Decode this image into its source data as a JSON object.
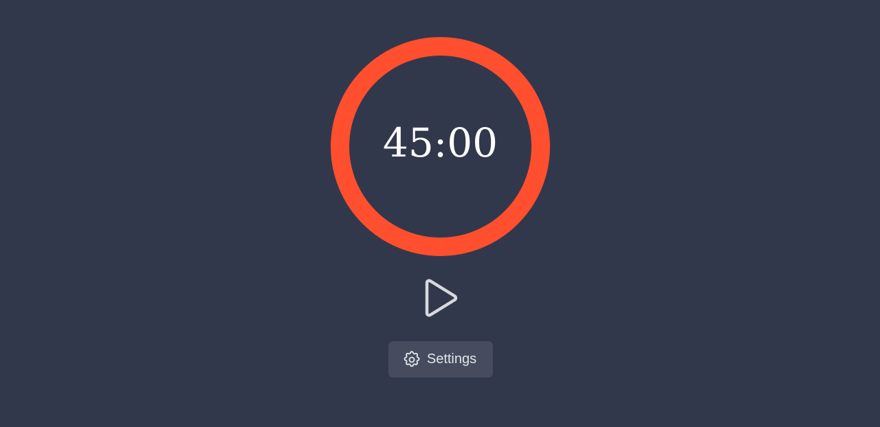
{
  "timer": {
    "time_text": "45:00",
    "progress_fraction": 1.0,
    "ring_color": "#ff4f2e",
    "track_color": "#32384b"
  },
  "controls": {
    "play_icon": "play-icon",
    "icon_color": "#d7d9df"
  },
  "settings": {
    "label": "Settings",
    "icon": "gear-icon"
  },
  "theme": {
    "background": "#32384b",
    "button_background": "#464c5e",
    "text_color": "#ffffff"
  }
}
